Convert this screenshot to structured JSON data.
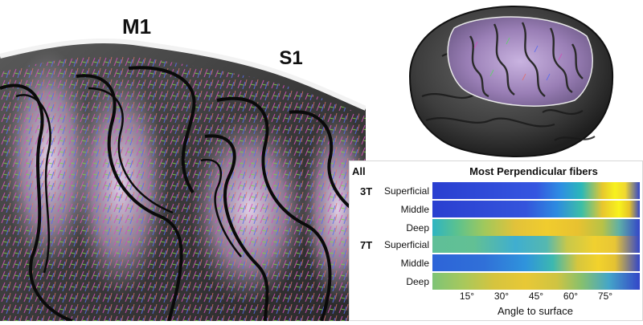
{
  "figure": {
    "labels": {
      "m1": "M1",
      "s1": "S1"
    }
  },
  "chart_data": {
    "type": "heatmap",
    "corner_label": "All",
    "title": "Most Perpendicular fibers",
    "xlabel": "Angle to surface",
    "x_ticks": [
      "15°",
      "30°",
      "45°",
      "60°",
      "75°"
    ],
    "x_tick_values": [
      15,
      30,
      45,
      60,
      75
    ],
    "xlim": [
      0,
      90
    ],
    "groups": [
      {
        "name": "3T",
        "rows": [
          {
            "name": "Superficial",
            "stops": [
              [
                0,
                "#2a3fd0"
              ],
              [
                0.5,
                "#3556e0"
              ],
              [
                0.62,
                "#2e8fe2"
              ],
              [
                0.72,
                "#2cb8b8"
              ],
              [
                0.82,
                "#e6c82e"
              ],
              [
                0.88,
                "#f7f11e"
              ],
              [
                0.93,
                "#f0d830"
              ],
              [
                1,
                "#3346c8"
              ]
            ]
          },
          {
            "name": "Middle",
            "stops": [
              [
                0,
                "#2a3fd0"
              ],
              [
                0.45,
                "#3454dc"
              ],
              [
                0.6,
                "#2d8be0"
              ],
              [
                0.72,
                "#3cbfa6"
              ],
              [
                0.82,
                "#e8c62e"
              ],
              [
                0.9,
                "#f8f31c"
              ],
              [
                0.95,
                "#e6c428"
              ],
              [
                1,
                "#3346c8"
              ]
            ]
          },
          {
            "name": "Deep",
            "stops": [
              [
                0,
                "#2eb4c2"
              ],
              [
                0.12,
                "#5cc28e"
              ],
              [
                0.25,
                "#a0c85c"
              ],
              [
                0.4,
                "#e2c23a"
              ],
              [
                0.55,
                "#f0cc2e"
              ],
              [
                0.7,
                "#e8c230"
              ],
              [
                0.82,
                "#b8c246"
              ],
              [
                0.9,
                "#5fb0a6"
              ],
              [
                1,
                "#3346c8"
              ]
            ]
          }
        ]
      },
      {
        "name": "7T",
        "rows": [
          {
            "name": "Superficial",
            "stops": [
              [
                0,
                "#5fbf98"
              ],
              [
                0.2,
                "#62c094"
              ],
              [
                0.4,
                "#3faed0"
              ],
              [
                0.55,
                "#55b8b0"
              ],
              [
                0.65,
                "#c8c84a"
              ],
              [
                0.78,
                "#f0d030"
              ],
              [
                0.88,
                "#e8c636"
              ],
              [
                1,
                "#3346c8"
              ]
            ]
          },
          {
            "name": "Middle",
            "stops": [
              [
                0,
                "#2d64d8"
              ],
              [
                0.25,
                "#3070d8"
              ],
              [
                0.45,
                "#2f94dc"
              ],
              [
                0.58,
                "#3cb8b0"
              ],
              [
                0.7,
                "#d6c63e"
              ],
              [
                0.8,
                "#f2d22c"
              ],
              [
                0.88,
                "#e4c232"
              ],
              [
                1,
                "#3346c8"
              ]
            ]
          },
          {
            "name": "Deep",
            "stops": [
              [
                0,
                "#7ec476"
              ],
              [
                0.15,
                "#a8c85c"
              ],
              [
                0.3,
                "#d6c43e"
              ],
              [
                0.45,
                "#e8c836"
              ],
              [
                0.6,
                "#cfc442"
              ],
              [
                0.72,
                "#86c06e"
              ],
              [
                0.85,
                "#45a6c8"
              ],
              [
                1,
                "#3346c8"
              ]
            ]
          }
        ]
      }
    ]
  }
}
